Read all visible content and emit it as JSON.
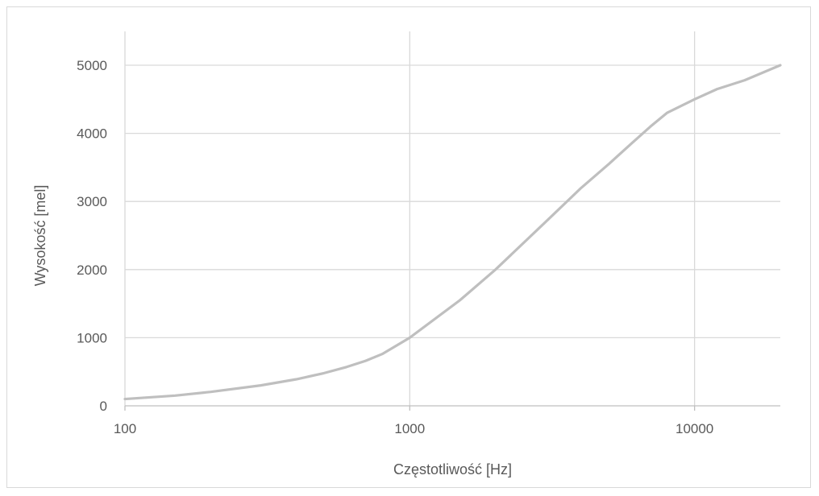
{
  "chart_data": {
    "type": "line",
    "title": "",
    "xlabel": "Częstotliwość [Hz]",
    "ylabel": "Wysokość [mel]",
    "x_scale": "log",
    "xlim": [
      100,
      20000
    ],
    "ylim": [
      0,
      5000
    ],
    "x_ticks": [
      100,
      1000,
      10000
    ],
    "x_tick_labels": [
      "100",
      "1000",
      "10000"
    ],
    "y_ticks": [
      0,
      1000,
      2000,
      3000,
      4000,
      5000
    ],
    "y_tick_labels": [
      "0",
      "1000",
      "2000",
      "3000",
      "4000",
      "5000"
    ],
    "grid": true,
    "legend": "none",
    "series": [
      {
        "color": "#bfbfbf",
        "x": [
          100,
          150,
          200,
          300,
          400,
          500,
          600,
          700,
          800,
          1000,
          1500,
          2000,
          3000,
          4000,
          5000,
          6000,
          7000,
          8000,
          10000,
          12000,
          15000,
          20000
        ],
        "y": [
          100,
          150,
          205,
          300,
          390,
          480,
          570,
          660,
          760,
          1000,
          1550,
          2000,
          2700,
          3200,
          3550,
          3850,
          4100,
          4300,
          4500,
          4650,
          4780,
          5000
        ]
      }
    ]
  }
}
